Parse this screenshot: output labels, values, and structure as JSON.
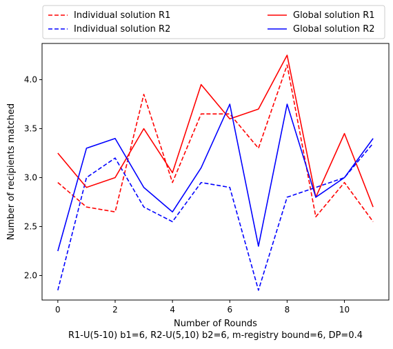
{
  "chart_data": {
    "type": "line",
    "x": [
      0,
      1,
      2,
      3,
      4,
      5,
      6,
      7,
      8,
      9,
      10,
      11
    ],
    "xlabel": "Number of Rounds",
    "caption": "R1-U(5-10) b1=6, R2-U(5,10) b2=6, m-registry bound=6, DP=0.4",
    "ylabel": "Number of recipients matched",
    "xlim": [
      -0.55,
      11.55
    ],
    "ylim": [
      1.75,
      4.37
    ],
    "xticks": [
      0,
      2,
      4,
      6,
      8,
      10
    ],
    "yticks": [
      2.0,
      2.5,
      3.0,
      3.5,
      4.0
    ],
    "xtick_labels": [
      "0",
      "2",
      "4",
      "6",
      "8",
      "10"
    ],
    "ytick_labels": [
      "2.0",
      "2.5",
      "3.0",
      "3.5",
      "4.0"
    ],
    "grid": false,
    "legend_placement": "above plot, two columns",
    "series": [
      {
        "name": "Individual solution R1",
        "color": "#ff0000",
        "dash": "dashed",
        "values": [
          2.95,
          2.7,
          2.65,
          3.85,
          2.95,
          3.65,
          3.65,
          3.3,
          4.15,
          2.6,
          2.95,
          2.55
        ]
      },
      {
        "name": "Individual solution R2",
        "color": "#0000ff",
        "dash": "dashed",
        "values": [
          1.85,
          3.0,
          3.2,
          2.7,
          2.55,
          2.95,
          2.9,
          1.85,
          2.8,
          2.9,
          3.0,
          3.35
        ]
      },
      {
        "name": "Global solution R1",
        "color": "#ff0000",
        "dash": "solid",
        "values": [
          3.25,
          2.9,
          3.0,
          3.5,
          3.05,
          3.95,
          3.6,
          3.7,
          4.25,
          2.8,
          3.45,
          2.7
        ]
      },
      {
        "name": "Global solution R2",
        "color": "#0000ff",
        "dash": "solid",
        "values": [
          2.25,
          3.3,
          3.4,
          2.9,
          2.65,
          3.1,
          3.75,
          2.3,
          3.75,
          2.8,
          3.0,
          3.4
        ]
      }
    ]
  }
}
